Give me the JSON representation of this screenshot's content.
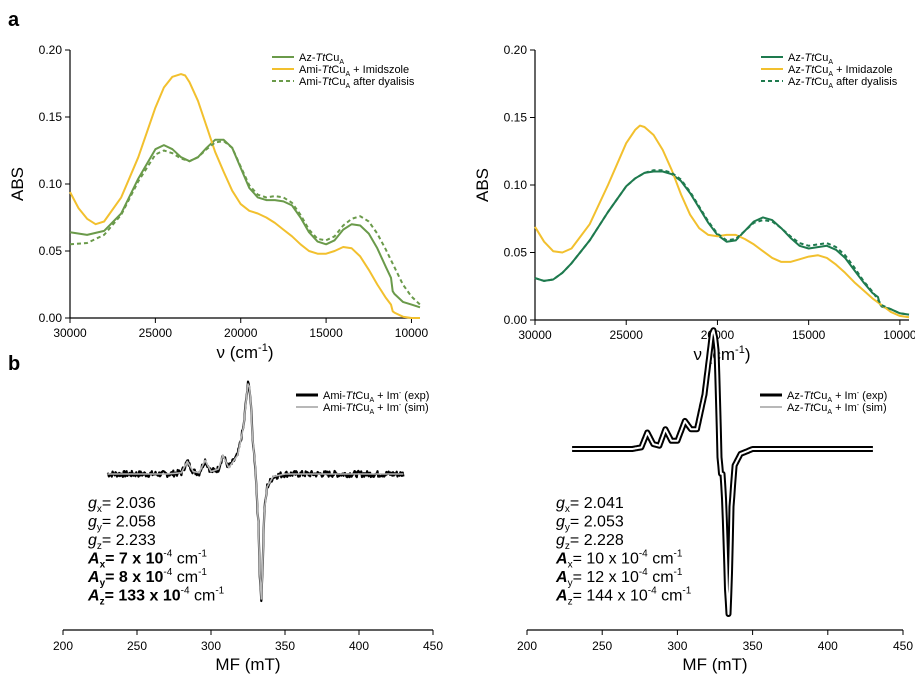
{
  "panel_labels": [
    "a",
    "b"
  ],
  "colors": {
    "green_light": "#6a9a4a",
    "green_dark": "#1e7a4e",
    "yellow": "#f2c02e",
    "black": "#000000",
    "grey": "#b8b8b8"
  },
  "chart_data": [
    {
      "type": "line",
      "panel": "a",
      "ylabel": "ABS",
      "xlabel_main": "ν (cm",
      "xlabel_sup": "-1",
      "xlabel_close": ")",
      "xlim": [
        30000,
        9500
      ],
      "ylim": [
        0.0,
        0.2
      ],
      "xticks": [
        30000,
        25000,
        20000,
        15000,
        10000
      ],
      "yticks": [
        0.0,
        0.05,
        0.1,
        0.15,
        0.2
      ],
      "ytick_labels": [
        "0.00",
        "0.05",
        "0.10",
        "0.15",
        "0.20"
      ],
      "legend": "top-right",
      "series": [
        {
          "name_pre": "Az-",
          "name_it": "Tt",
          "name_main": "Cu",
          "name_sub": "A",
          "name_post": "",
          "color": "#6a9a4a",
          "dash": false,
          "x": [
            30000,
            29000,
            28000,
            27000,
            26000,
            25000,
            24500,
            24000,
            23500,
            23000,
            22500,
            22000,
            21500,
            21000,
            20500,
            20000,
            19500,
            19000,
            18500,
            18000,
            17500,
            17000,
            16500,
            16000,
            15500,
            15000,
            14500,
            14000,
            13500,
            13000,
            12500,
            12000,
            11500,
            11200,
            11100,
            11000,
            10500,
            10000,
            9500
          ],
          "y": [
            0.064,
            0.062,
            0.065,
            0.078,
            0.104,
            0.126,
            0.129,
            0.126,
            0.12,
            0.117,
            0.12,
            0.127,
            0.133,
            0.133,
            0.127,
            0.112,
            0.097,
            0.09,
            0.088,
            0.088,
            0.087,
            0.084,
            0.075,
            0.064,
            0.057,
            0.055,
            0.058,
            0.066,
            0.07,
            0.069,
            0.063,
            0.052,
            0.038,
            0.03,
            0.02,
            0.018,
            0.012,
            0.01,
            0.008
          ]
        },
        {
          "name_pre": "Ami-",
          "name_it": "Tt",
          "name_main": "Cu",
          "name_sub": "A",
          "name_post": " + Imidszole",
          "color": "#f2c02e",
          "dash": false,
          "x": [
            30000,
            29500,
            29000,
            28500,
            28000,
            27000,
            26000,
            25000,
            24500,
            24000,
            23500,
            23250,
            23000,
            22500,
            22000,
            21500,
            21000,
            20500,
            20000,
            19500,
            19000,
            18500,
            18000,
            17500,
            17000,
            16500,
            16000,
            15500,
            15000,
            14500,
            14000,
            13500,
            13000,
            12500,
            12000,
            11500,
            11200,
            11100,
            11000,
            10500,
            10000,
            9500
          ],
          "y": [
            0.094,
            0.082,
            0.074,
            0.07,
            0.072,
            0.09,
            0.12,
            0.157,
            0.172,
            0.18,
            0.182,
            0.181,
            0.176,
            0.162,
            0.143,
            0.124,
            0.109,
            0.095,
            0.085,
            0.08,
            0.078,
            0.075,
            0.071,
            0.066,
            0.061,
            0.055,
            0.05,
            0.048,
            0.048,
            0.05,
            0.053,
            0.052,
            0.046,
            0.036,
            0.025,
            0.015,
            0.01,
            0.005,
            0.004,
            0.001,
            0.0,
            0.0
          ]
        },
        {
          "name_pre": "Ami-",
          "name_it": "Tt",
          "name_main": "Cu",
          "name_sub": "A",
          "name_post": " after dyalisis",
          "color": "#6a9a4a",
          "dash": true,
          "x": [
            30000,
            29000,
            28000,
            27000,
            26000,
            25000,
            24500,
            24000,
            23500,
            23000,
            22500,
            22000,
            21500,
            21000,
            20500,
            20000,
            19500,
            19000,
            18500,
            18000,
            17500,
            17000,
            16500,
            16000,
            15500,
            15000,
            14500,
            14000,
            13500,
            13000,
            12500,
            12000,
            11500,
            11000,
            10500,
            10000,
            9500
          ],
          "y": [
            0.055,
            0.056,
            0.062,
            0.077,
            0.102,
            0.122,
            0.125,
            0.123,
            0.119,
            0.117,
            0.12,
            0.126,
            0.131,
            0.132,
            0.127,
            0.113,
            0.099,
            0.092,
            0.09,
            0.091,
            0.09,
            0.086,
            0.077,
            0.066,
            0.059,
            0.058,
            0.061,
            0.069,
            0.074,
            0.076,
            0.072,
            0.063,
            0.051,
            0.038,
            0.025,
            0.016,
            0.01
          ]
        }
      ]
    },
    {
      "type": "line",
      "panel": "a",
      "ylabel": "ABS",
      "xlabel_main": "ν (cm",
      "xlabel_sup": "-1",
      "xlabel_close": ")",
      "xlim": [
        30000,
        9500
      ],
      "ylim": [
        0.0,
        0.2
      ],
      "xticks": [
        30000,
        25000,
        20000,
        15000,
        10000
      ],
      "yticks": [
        0.0,
        0.05,
        0.1,
        0.15,
        0.2
      ],
      "ytick_labels": [
        "0.00",
        "0.05",
        "0.10",
        "0.15",
        "0.20"
      ],
      "legend": "top-right",
      "series": [
        {
          "name_pre": "Az-",
          "name_it": "Tt",
          "name_main": "Cu",
          "name_sub": "A",
          "name_post": "",
          "color": "#1e7a4e",
          "dash": false,
          "x": [
            30000,
            29500,
            29000,
            28500,
            28000,
            27000,
            26000,
            25000,
            24500,
            24000,
            23500,
            23000,
            22500,
            22000,
            21500,
            21000,
            20500,
            20000,
            19500,
            19000,
            18500,
            18000,
            17500,
            17000,
            16500,
            16000,
            15500,
            15000,
            14500,
            14000,
            13500,
            13000,
            12500,
            12000,
            11500,
            11200,
            11100,
            11000,
            10500,
            10000,
            9500
          ],
          "y": [
            0.031,
            0.029,
            0.03,
            0.035,
            0.042,
            0.059,
            0.08,
            0.099,
            0.105,
            0.109,
            0.11,
            0.11,
            0.108,
            0.103,
            0.094,
            0.083,
            0.072,
            0.063,
            0.058,
            0.059,
            0.066,
            0.073,
            0.076,
            0.074,
            0.068,
            0.061,
            0.055,
            0.053,
            0.054,
            0.055,
            0.052,
            0.046,
            0.037,
            0.028,
            0.02,
            0.017,
            0.012,
            0.01,
            0.008,
            0.005,
            0.004
          ]
        },
        {
          "name_pre": "Az-",
          "name_it": "Tt",
          "name_main": "Cu",
          "name_sub": "A",
          "name_post": " + Imidazole",
          "color": "#f2c02e",
          "dash": false,
          "x": [
            30000,
            29500,
            29000,
            28500,
            28000,
            27000,
            26000,
            25000,
            24500,
            24250,
            24000,
            23500,
            23000,
            22500,
            22000,
            21500,
            21000,
            20500,
            20000,
            19500,
            19000,
            18500,
            18000,
            17500,
            17000,
            16500,
            16000,
            15500,
            15000,
            14500,
            14000,
            13500,
            13000,
            12500,
            12000,
            11500,
            11000,
            10500,
            10000,
            9500
          ],
          "y": [
            0.069,
            0.058,
            0.051,
            0.05,
            0.053,
            0.071,
            0.1,
            0.131,
            0.141,
            0.144,
            0.143,
            0.137,
            0.126,
            0.111,
            0.093,
            0.078,
            0.068,
            0.063,
            0.062,
            0.063,
            0.063,
            0.06,
            0.056,
            0.051,
            0.046,
            0.043,
            0.043,
            0.045,
            0.047,
            0.048,
            0.046,
            0.041,
            0.035,
            0.028,
            0.022,
            0.016,
            0.011,
            0.006,
            0.003,
            0.002
          ]
        },
        {
          "name_pre": "Az-",
          "name_it": "Tt",
          "name_main": "Cu",
          "name_sub": "A",
          "name_post": " after dyalisis",
          "color": "#1e7a4e",
          "dash": true,
          "x": [
            30000,
            29500,
            29000,
            28500,
            28000,
            27000,
            26000,
            25000,
            24500,
            24000,
            23500,
            23000,
            22500,
            22000,
            21500,
            21000,
            20500,
            20000,
            19500,
            19000,
            18500,
            18000,
            17500,
            17000,
            16500,
            16000,
            15500,
            15000,
            14500,
            14000,
            13500,
            13000,
            12500,
            12000,
            11500,
            11000,
            10500,
            10000,
            9500
          ],
          "y": [
            0.031,
            0.029,
            0.03,
            0.035,
            0.042,
            0.059,
            0.08,
            0.099,
            0.105,
            0.109,
            0.111,
            0.111,
            0.109,
            0.104,
            0.095,
            0.084,
            0.073,
            0.064,
            0.059,
            0.06,
            0.066,
            0.072,
            0.074,
            0.073,
            0.068,
            0.062,
            0.057,
            0.055,
            0.056,
            0.057,
            0.054,
            0.048,
            0.039,
            0.029,
            0.021,
            0.011,
            0.008,
            0.005,
            0.004
          ]
        }
      ]
    },
    {
      "type": "line",
      "panel": "b",
      "xlabel": "MF (mT)",
      "xlim": [
        200,
        450
      ],
      "xticks": [
        200,
        250,
        300,
        350,
        400,
        450
      ],
      "legend": "top-right",
      "series": [
        {
          "name_pre": "Ami-",
          "name_it": "Tt",
          "name_main": "Cu",
          "name_sub": "A",
          "name_im": " + Im",
          "name_sup": "-",
          "name_tag": " (exp)",
          "color": "#000000"
        },
        {
          "name_pre": "Ami-",
          "name_it": "Tt",
          "name_main": "Cu",
          "name_sub": "A",
          "name_im": " + Im",
          "name_sup": "-",
          "name_tag": " (sim)",
          "color": "#b8b8b8"
        }
      ],
      "params": [
        {
          "sym": "g",
          "sub": "x",
          "bold": false,
          "text": "= 2.036",
          "sup": "",
          "tail": ""
        },
        {
          "sym": "g",
          "sub": "y",
          "bold": false,
          "text": "= 2.058",
          "sup": "",
          "tail": ""
        },
        {
          "sym": "g",
          "sub": "z",
          "bold": false,
          "text": "= 2.233",
          "sup": "",
          "tail": ""
        },
        {
          "sym": "A",
          "sub": "x",
          "bold": true,
          "text": "= 7 x 10",
          "sup": "-4",
          "tail": " cm",
          "sup2": "-1"
        },
        {
          "sym": "A",
          "sub": "y",
          "bold": true,
          "text": "= 8 x 10",
          "sup": "-4",
          "tail": " cm",
          "sup2": "-1"
        },
        {
          "sym": "A",
          "sub": "z",
          "bold": true,
          "text": "= 133 x 10",
          "sup": "-4",
          "tail": " cm",
          "sup2": "-1"
        }
      ],
      "features": {
        "x": [
          230,
          270,
          280,
          284,
          288,
          292,
          296,
          300,
          305,
          308,
          312,
          318,
          322,
          324,
          325,
          326,
          327,
          328,
          330,
          332,
          333,
          334,
          335,
          336,
          338,
          342,
          350,
          380,
          430
        ],
        "y": [
          0.0,
          0.0,
          0.01,
          0.1,
          0.02,
          0.01,
          0.11,
          0.02,
          0.04,
          0.15,
          0.05,
          0.15,
          0.38,
          0.62,
          0.72,
          0.7,
          0.55,
          0.3,
          0.05,
          -0.4,
          -0.8,
          -1.0,
          -0.7,
          -0.3,
          -0.1,
          -0.02,
          0.0,
          0.0,
          0.0
        ]
      }
    },
    {
      "type": "line",
      "panel": "b",
      "xlabel": "MF (mT)",
      "xlim": [
        200,
        450
      ],
      "xticks": [
        200,
        250,
        300,
        350,
        400,
        450
      ],
      "legend": "top-right",
      "series": [
        {
          "name_pre": "Az-",
          "name_it": "Tt",
          "name_main": "Cu",
          "name_sub": "A",
          "name_im": " + Im",
          "name_sup": "-",
          "name_tag": " (exp)",
          "color": "#000000"
        },
        {
          "name_pre": "Az-",
          "name_it": "Tt",
          "name_main": "Cu",
          "name_sub": "A",
          "name_im": " + Im",
          "name_sup": "-",
          "name_tag": " (sim)",
          "color": "#b8b8b8"
        }
      ],
      "params": [
        {
          "sym": "g",
          "sub": "x",
          "bold": false,
          "text": "= 2.041",
          "sup": "",
          "tail": ""
        },
        {
          "sym": "g",
          "sub": "y",
          "bold": false,
          "text": "= 2.053",
          "sup": "",
          "tail": ""
        },
        {
          "sym": "g",
          "sub": "z",
          "bold": false,
          "text": "= 2.228",
          "sup": "",
          "tail": ""
        },
        {
          "sym": "A",
          "sub": "x",
          "bold": true,
          "text": "= 10 x 10",
          "sup": "-4",
          "tail": " cm",
          "sup2": "-1"
        },
        {
          "sym": "A",
          "sub": "y",
          "bold": true,
          "text": "= 12 x 10",
          "sup": "-4",
          "tail": " cm",
          "sup2": "-1"
        },
        {
          "sym": "A",
          "sub": "z",
          "bold": true,
          "text": "= 144 x 10",
          "sup": "-4",
          "tail": " cm",
          "sup2": "-1"
        }
      ],
      "features": {
        "x": [
          230,
          270,
          276,
          280,
          284,
          288,
          292,
          296,
          300,
          305,
          309,
          313,
          318,
          321,
          323,
          324,
          325,
          326,
          327,
          328,
          329,
          330,
          331,
          332,
          333,
          334,
          335,
          336,
          338,
          342,
          350,
          380,
          430
        ],
        "y": [
          0.0,
          0.0,
          0.01,
          0.1,
          0.03,
          0.02,
          0.12,
          0.05,
          0.05,
          0.17,
          0.12,
          0.12,
          0.33,
          0.55,
          0.7,
          0.72,
          0.68,
          0.6,
          0.3,
          -0.05,
          -0.15,
          -0.15,
          -0.3,
          -0.55,
          -0.85,
          -1.0,
          -0.75,
          -0.35,
          -0.1,
          -0.03,
          0.0,
          0.0,
          0.0
        ]
      }
    }
  ]
}
